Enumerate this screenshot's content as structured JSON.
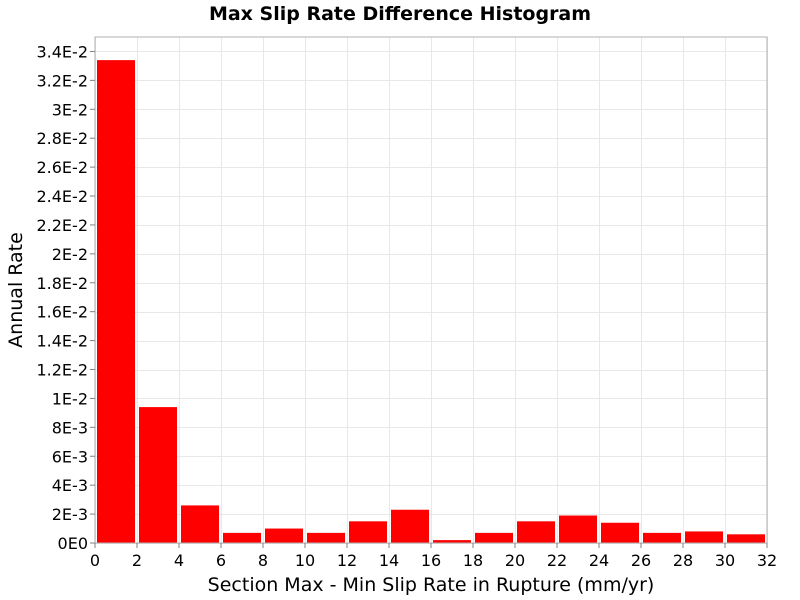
{
  "chart_data": {
    "type": "bar",
    "title": "Max Slip Rate Difference Histogram",
    "xlabel": "Section Max - Min Slip Rate in Rupture (mm/yr)",
    "ylabel": "Annual Rate",
    "bin_width": 2,
    "x": [
      1,
      3,
      5,
      7,
      9,
      11,
      13,
      15,
      17,
      19,
      21,
      23,
      25,
      27,
      29,
      31
    ],
    "values": [
      0.0334,
      0.0094,
      0.0026,
      0.0007,
      0.001,
      0.0007,
      0.0015,
      0.0023,
      0.0002,
      0.0007,
      0.0015,
      0.0019,
      0.0014,
      0.0007,
      0.0008,
      0.0006
    ],
    "xlim": [
      0,
      32
    ],
    "ylim": [
      0,
      0.035
    ],
    "xticks": [
      0,
      2,
      4,
      6,
      8,
      10,
      12,
      14,
      16,
      18,
      20,
      22,
      24,
      26,
      28,
      30,
      32
    ],
    "xtick_labels": [
      "0",
      "2",
      "4",
      "6",
      "8",
      "10",
      "12",
      "14",
      "16",
      "18",
      "20",
      "22",
      "24",
      "26",
      "28",
      "30",
      "32"
    ],
    "yticks": [
      0,
      0.002,
      0.004,
      0.006,
      0.008,
      0.01,
      0.012,
      0.014,
      0.016,
      0.018,
      0.02,
      0.022,
      0.024,
      0.026,
      0.028,
      0.03,
      0.032,
      0.034
    ],
    "ytick_labels": [
      "0E0",
      "2E-3",
      "4E-3",
      "6E-3",
      "8E-3",
      "1E-2",
      "1.2E-2",
      "1.4E-2",
      "1.6E-2",
      "1.8E-2",
      "2E-2",
      "2.2E-2",
      "2.4E-2",
      "2.6E-2",
      "2.8E-2",
      "3E-2",
      "3.2E-2",
      "3.4E-2"
    ],
    "grid": true,
    "bar_color": "#ff0000",
    "grid_color": "#e8e8e8",
    "frame_color": "#b0b0b0"
  }
}
